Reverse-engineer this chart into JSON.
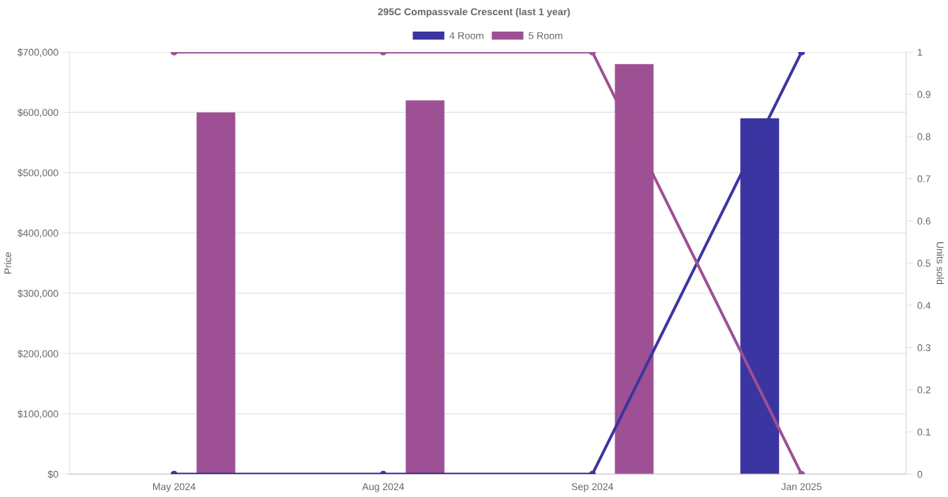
{
  "chart_data": {
    "type": "bar",
    "title": "295C Compassvale Crescent (last 1 year)",
    "ylabel": "Price",
    "y2label": "Units sold",
    "categories": [
      "May 2024",
      "Aug 2024",
      "Sep 2024",
      "Jan 2025"
    ],
    "series": [
      {
        "name": "4 Room",
        "color": "#3a35a0",
        "values": [
          null,
          null,
          null,
          590000
        ]
      },
      {
        "name": "5 Room",
        "color": "#9e5094",
        "values": [
          600000,
          620000,
          680000,
          null
        ]
      },
      {
        "type": "line",
        "axis": "y2",
        "color": "#3a35a0",
        "values": [
          0,
          0,
          0,
          1
        ]
      },
      {
        "type": "line",
        "axis": "y2",
        "color": "#9e5094",
        "values": [
          1,
          1,
          1,
          0
        ]
      }
    ],
    "ylim": [
      0,
      700000
    ],
    "yticks": [
      {
        "value": 0,
        "label": "$0"
      },
      {
        "value": 100000,
        "label": "$100,000"
      },
      {
        "value": 200000,
        "label": "$200,000"
      },
      {
        "value": 300000,
        "label": "$300,000"
      },
      {
        "value": 400000,
        "label": "$400,000"
      },
      {
        "value": 500000,
        "label": "$500,000"
      },
      {
        "value": 600000,
        "label": "$600,000"
      },
      {
        "value": 700000,
        "label": "$700,000"
      }
    ],
    "y2lim": [
      0,
      1
    ],
    "y2ticks": [
      0,
      0.1,
      0.2,
      0.3,
      0.4,
      0.5,
      0.6,
      0.7,
      0.8,
      0.9,
      1
    ],
    "grid": "y",
    "legend": "top",
    "marker": "circle",
    "line_style": "solid"
  }
}
